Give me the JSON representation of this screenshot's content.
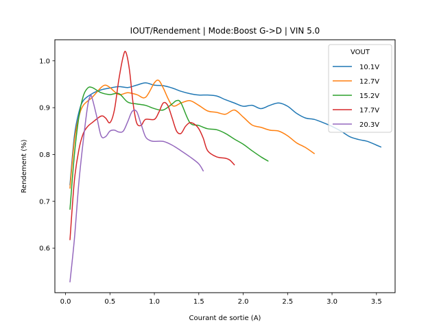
{
  "chart_data": {
    "type": "line",
    "title": "IOUT/Rendement | Mode:Boost G->D | VIN 5.0",
    "xlabel": "Courant de sortie (A)",
    "ylabel": "Rendement (%)",
    "xlim": [
      -0.12,
      3.71
    ],
    "ylim": [
      0.505,
      1.045
    ],
    "xticks": [
      0.0,
      0.5,
      1.0,
      1.5,
      2.0,
      2.5,
      3.0,
      3.5
    ],
    "xtick_labels": [
      "0.0",
      "0.5",
      "1.0",
      "1.5",
      "2.0",
      "2.5",
      "3.0",
      "3.5"
    ],
    "yticks": [
      0.6,
      0.7,
      0.8,
      0.9,
      1.0
    ],
    "ytick_labels": [
      "0.6",
      "0.7",
      "0.8",
      "0.9",
      "1.0"
    ],
    "grid": false,
    "legend": {
      "title": "VOUT",
      "placement": "top-right"
    },
    "series": [
      {
        "name": "10.1V",
        "color": "#1f77b4",
        "x": [
          0.05,
          0.1,
          0.15,
          0.2,
          0.3,
          0.4,
          0.5,
          0.6,
          0.7,
          0.8,
          0.9,
          1.0,
          1.1,
          1.2,
          1.3,
          1.4,
          1.5,
          1.6,
          1.7,
          1.8,
          1.9,
          2.0,
          2.1,
          2.2,
          2.3,
          2.4,
          2.5,
          2.6,
          2.7,
          2.8,
          2.9,
          3.0,
          3.1,
          3.2,
          3.3,
          3.4,
          3.5,
          3.55
        ],
        "y": [
          0.735,
          0.84,
          0.89,
          0.915,
          0.93,
          0.938,
          0.942,
          0.945,
          0.943,
          0.948,
          0.953,
          0.948,
          0.947,
          0.942,
          0.935,
          0.93,
          0.927,
          0.927,
          0.925,
          0.917,
          0.91,
          0.903,
          0.905,
          0.898,
          0.905,
          0.91,
          0.903,
          0.888,
          0.878,
          0.875,
          0.868,
          0.86,
          0.85,
          0.838,
          0.832,
          0.828,
          0.82,
          0.816
        ]
      },
      {
        "name": "12.7V",
        "color": "#ff7f0e",
        "x": [
          0.05,
          0.1,
          0.15,
          0.2,
          0.3,
          0.4,
          0.45,
          0.5,
          0.6,
          0.7,
          0.8,
          0.9,
          1.0,
          1.05,
          1.1,
          1.2,
          1.3,
          1.4,
          1.5,
          1.6,
          1.7,
          1.8,
          1.9,
          2.0,
          2.1,
          2.2,
          2.3,
          2.4,
          2.5,
          2.6,
          2.7,
          2.8
        ],
        "y": [
          0.728,
          0.83,
          0.88,
          0.905,
          0.922,
          0.943,
          0.948,
          0.943,
          0.928,
          0.932,
          0.928,
          0.922,
          0.953,
          0.958,
          0.942,
          0.905,
          0.91,
          0.915,
          0.905,
          0.893,
          0.89,
          0.886,
          0.895,
          0.88,
          0.863,
          0.858,
          0.852,
          0.85,
          0.84,
          0.825,
          0.815,
          0.802
        ]
      },
      {
        "name": "15.2V",
        "color": "#2ca02c",
        "x": [
          0.05,
          0.1,
          0.15,
          0.2,
          0.25,
          0.3,
          0.4,
          0.5,
          0.6,
          0.7,
          0.8,
          0.9,
          1.0,
          1.1,
          1.2,
          1.25,
          1.3,
          1.4,
          1.5,
          1.6,
          1.7,
          1.8,
          1.9,
          2.0,
          2.1,
          2.2,
          2.28
        ],
        "y": [
          0.683,
          0.8,
          0.88,
          0.925,
          0.942,
          0.943,
          0.932,
          0.928,
          0.93,
          0.912,
          0.908,
          0.905,
          0.898,
          0.895,
          0.908,
          0.915,
          0.91,
          0.868,
          0.862,
          0.855,
          0.853,
          0.845,
          0.833,
          0.822,
          0.808,
          0.795,
          0.786
        ]
      },
      {
        "name": "17.7V",
        "color": "#d62728",
        "x": [
          0.05,
          0.1,
          0.15,
          0.2,
          0.25,
          0.3,
          0.4,
          0.45,
          0.5,
          0.55,
          0.6,
          0.65,
          0.68,
          0.72,
          0.76,
          0.8,
          0.85,
          0.9,
          1.0,
          1.05,
          1.1,
          1.15,
          1.2,
          1.25,
          1.3,
          1.35,
          1.4,
          1.45,
          1.5,
          1.55,
          1.6,
          1.7,
          1.8,
          1.85,
          1.9
        ],
        "y": [
          0.618,
          0.745,
          0.81,
          0.845,
          0.86,
          0.868,
          0.882,
          0.878,
          0.868,
          0.895,
          0.96,
          1.01,
          1.018,
          0.98,
          0.91,
          0.868,
          0.862,
          0.875,
          0.875,
          0.89,
          0.91,
          0.905,
          0.878,
          0.85,
          0.845,
          0.86,
          0.868,
          0.865,
          0.855,
          0.835,
          0.808,
          0.795,
          0.792,
          0.788,
          0.778
        ]
      },
      {
        "name": "20.3V",
        "color": "#9467bd",
        "x": [
          0.05,
          0.1,
          0.15,
          0.2,
          0.25,
          0.28,
          0.3,
          0.35,
          0.4,
          0.45,
          0.5,
          0.55,
          0.6,
          0.65,
          0.7,
          0.75,
          0.8,
          0.85,
          0.9,
          0.95,
          1.0,
          1.1,
          1.2,
          1.3,
          1.4,
          1.5,
          1.55
        ],
        "y": [
          0.528,
          0.62,
          0.74,
          0.83,
          0.905,
          0.925,
          0.92,
          0.882,
          0.84,
          0.838,
          0.85,
          0.852,
          0.848,
          0.85,
          0.87,
          0.892,
          0.892,
          0.865,
          0.838,
          0.83,
          0.828,
          0.828,
          0.82,
          0.808,
          0.795,
          0.78,
          0.765
        ]
      }
    ]
  }
}
